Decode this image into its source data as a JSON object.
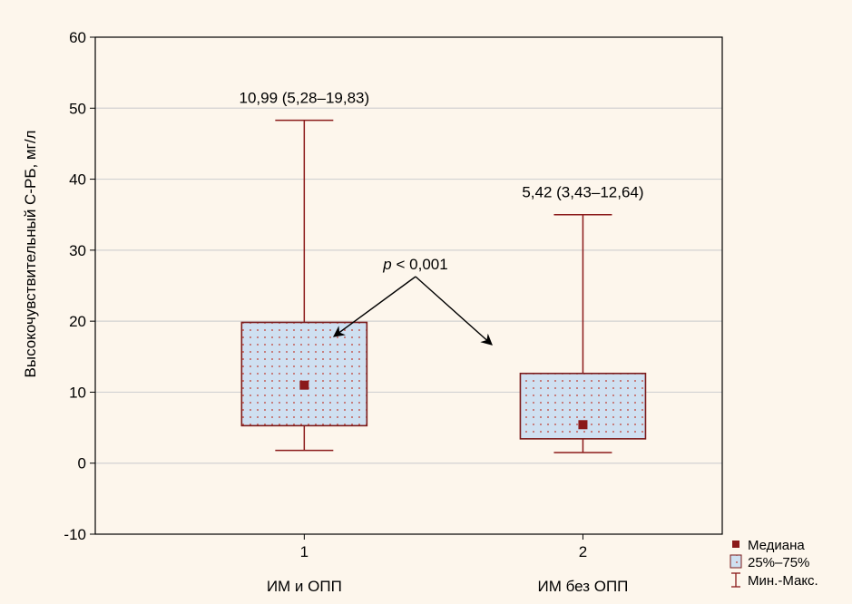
{
  "colors": {
    "background": "#fdf6ec",
    "box_fill": "#cfe0f1",
    "box_stroke": "#7b1a1a",
    "box_dots": "#c0392b",
    "whisker": "#8b1a1a",
    "median": "#8b1a1a",
    "grid": "#d2d2d2"
  },
  "chart_data": {
    "type": "box",
    "ylabel": "Высокочувствительный С-РБ, мг/л",
    "ylim": [
      -10,
      60
    ],
    "yticks": [
      "-10",
      "0",
      "10",
      "20",
      "30",
      "40",
      "50",
      "60"
    ],
    "xlim": [
      0.25,
      2.5
    ],
    "grid": "horizontal",
    "categories": [
      {
        "x_tick": "1",
        "name": "ИМ и ОПП",
        "median": 10.99,
        "q1": 5.28,
        "q3": 19.83,
        "min": 1.8,
        "max": 48.3,
        "label": "10,99 (5,28–19,83)"
      },
      {
        "x_tick": "2",
        "name": "ИМ без ОПП",
        "median": 5.42,
        "q1": 3.43,
        "q3": 12.64,
        "min": 1.5,
        "max": 35.0,
        "label": "5,42 (3,43–12,64)"
      }
    ],
    "annotation": {
      "p_symbol": "p",
      "p_text": " < 0,001"
    },
    "legend": {
      "position": "bottom-right",
      "median": "Медиана",
      "iqr": "25%–75%",
      "range": "Мин.-Макс."
    }
  }
}
